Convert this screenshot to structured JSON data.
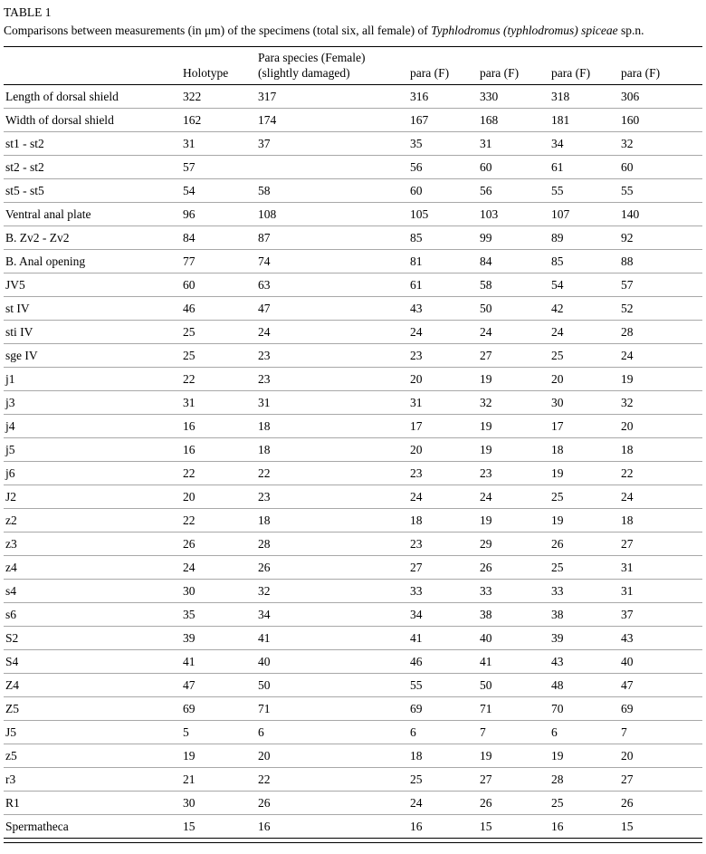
{
  "document": {
    "table_label": "TABLE 1",
    "caption": {
      "prefix": "Comparisons between measurements (in μm) of the specimens (total six, all female) of ",
      "italic": "Typhlodromus (typhlodromus) spiceae",
      "suffix": " sp.n."
    }
  },
  "chart_data": {
    "type": "table",
    "title": "TABLE 1",
    "columns": [
      "",
      "Holotype",
      "Para species (Female)\n(slightly damaged)",
      "para (F)",
      "para (F)",
      "para (F)",
      "para (F)"
    ],
    "rows": [
      [
        "Length of dorsal shield",
        "322",
        "317",
        "316",
        "330",
        "318",
        "306"
      ],
      [
        "Width of dorsal shield",
        "162",
        "174",
        "167",
        "168",
        "181",
        "160"
      ],
      [
        "st1 - st2",
        "31",
        "37",
        "35",
        "31",
        "34",
        "32"
      ],
      [
        "st2 - st2",
        "57",
        "",
        "56",
        "60",
        "61",
        "60"
      ],
      [
        "st5 - st5",
        "54",
        "58",
        "60",
        "56",
        "55",
        "55"
      ],
      [
        "Ventral anal plate",
        "96",
        "108",
        "105",
        "103",
        "107",
        "140"
      ],
      [
        "B. Zv2 - Zv2",
        "84",
        "87",
        "85",
        "99",
        "89",
        "92"
      ],
      [
        "B. Anal opening",
        "77",
        "74",
        "81",
        "84",
        "85",
        "88"
      ],
      [
        "JV5",
        "60",
        "63",
        "61",
        "58",
        "54",
        "57"
      ],
      [
        "st IV",
        "46",
        "47",
        "43",
        "50",
        "42",
        "52"
      ],
      [
        "sti IV",
        "25",
        "24",
        "24",
        "24",
        "24",
        "28"
      ],
      [
        "sge IV",
        "25",
        "23",
        "23",
        "27",
        "25",
        "24"
      ],
      [
        "j1",
        "22",
        "23",
        "20",
        "19",
        "20",
        "19"
      ],
      [
        "j3",
        "31",
        "31",
        "31",
        "32",
        "30",
        "32"
      ],
      [
        "j4",
        "16",
        "18",
        "17",
        "19",
        "17",
        "20"
      ],
      [
        "j5",
        "16",
        "18",
        "20",
        "19",
        "18",
        "18"
      ],
      [
        "j6",
        "22",
        "22",
        "23",
        "23",
        "19",
        "22"
      ],
      [
        "J2",
        "20",
        "23",
        "24",
        "24",
        "25",
        "24"
      ],
      [
        "z2",
        "22",
        "18",
        "18",
        "19",
        "19",
        "18"
      ],
      [
        "z3",
        "26",
        "28",
        "23",
        "29",
        "26",
        "27"
      ],
      [
        "z4",
        "24",
        "26",
        "27",
        "26",
        "25",
        "31"
      ],
      [
        "s4",
        "30",
        "32",
        "33",
        "33",
        "33",
        "31"
      ],
      [
        "s6",
        "35",
        "34",
        "34",
        "38",
        "38",
        "37"
      ],
      [
        "S2",
        "39",
        "41",
        "41",
        "40",
        "39",
        "43"
      ],
      [
        "S4",
        "41",
        "40",
        "46",
        "41",
        "43",
        "40"
      ],
      [
        "Z4",
        "47",
        "50",
        "55",
        "50",
        "48",
        "47"
      ],
      [
        "Z5",
        "69",
        "71",
        "69",
        "71",
        "70",
        "69"
      ],
      [
        "J5",
        "5",
        "6",
        "6",
        "7",
        "6",
        "7"
      ],
      [
        "z5",
        "19",
        "20",
        "18",
        "19",
        "19",
        "20"
      ],
      [
        "r3",
        "21",
        "22",
        "25",
        "27",
        "28",
        "27"
      ],
      [
        "R1",
        "30",
        "26",
        "24",
        "26",
        "25",
        "26"
      ],
      [
        "Spermatheca",
        "15",
        "16",
        "16",
        "15",
        "16",
        "15"
      ]
    ]
  }
}
